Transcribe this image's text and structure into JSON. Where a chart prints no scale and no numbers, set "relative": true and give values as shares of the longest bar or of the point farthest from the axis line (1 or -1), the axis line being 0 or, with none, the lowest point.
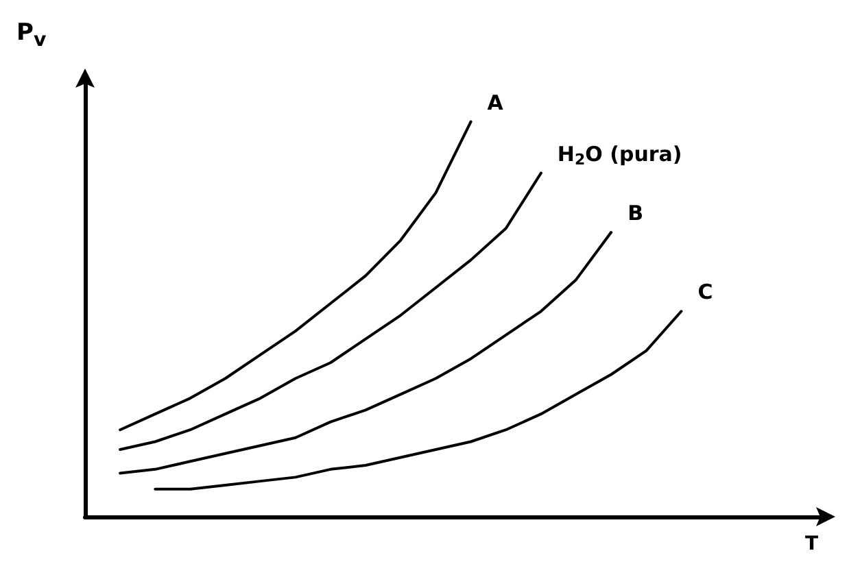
{
  "chart_data": {
    "type": "line",
    "relative": true,
    "xlabel": "T",
    "ylabel": "P$_{v}$",
    "legend": false,
    "grid": false,
    "marker": "none",
    "categories": [
      null,
      null,
      null,
      null,
      null,
      null,
      null,
      null,
      null,
      null,
      null,
      null,
      null,
      null,
      null,
      null,
      null,
      null,
      null,
      null,
      null,
      null
    ],
    "series": [
      {
        "name": "A",
        "color": "#000000",
        "values": [
          null,
          0.22,
          0.26,
          0.3,
          0.35,
          0.41,
          0.47,
          0.54,
          0.61,
          0.7,
          0.82,
          1,
          null,
          null,
          null,
          null,
          null,
          null,
          null,
          null,
          null,
          null
        ]
      },
      {
        "name": "H$_{2}$O (pura)",
        "color": "#000000",
        "values": [
          null,
          0.17,
          0.19,
          0.22,
          0.26,
          0.3,
          0.35,
          0.39,
          0.45,
          0.51,
          0.58,
          0.65,
          0.73,
          0.87,
          null,
          null,
          null,
          null,
          null,
          null,
          null,
          null
        ]
      },
      {
        "name": "B",
        "color": "#000000",
        "values": [
          null,
          0.11,
          0.12,
          0.14,
          0.16,
          0.18,
          0.2,
          0.24,
          0.27,
          0.31,
          0.35,
          0.4,
          0.46,
          0.52,
          0.6,
          0.72,
          null,
          null,
          null,
          null,
          null,
          null
        ]
      },
      {
        "name": "C",
        "color": "#000000",
        "values": [
          null,
          null,
          0.07,
          0.07,
          0.08,
          0.09,
          0.1,
          0.12,
          0.13,
          0.15,
          0.17,
          0.19,
          0.22,
          0.26,
          0.31,
          0.36,
          0.42,
          0.52,
          null,
          null,
          null,
          null
        ]
      }
    ]
  }
}
